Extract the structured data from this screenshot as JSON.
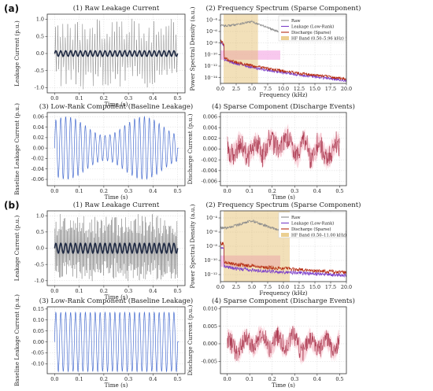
{
  "figure_labels": [
    "(a)",
    "(b)"
  ],
  "colors": {
    "raw_signal": "#7f7f7f",
    "baseline_trace": "#1f2a44",
    "lowrank": "#4a6fd0",
    "sparse_line": "#a8324a",
    "sparse_fill": "#f2a9b8",
    "spectrum_raw": "#8c8c8c",
    "spectrum_lowrank": "#7b3fc9",
    "spectrum_sparse": "#b52a10",
    "hf_band": "#e2bb63",
    "spectrum_highlight": "#f5b6e8"
  },
  "chart_data": [
    {
      "id": "a1",
      "type": "line",
      "title": "(1) Raw Leakage Current",
      "xlabel": "Time (s)",
      "ylabel": "Leakage Current (p.u.)",
      "xlim": [
        -0.03,
        0.53
      ],
      "ylim": [
        -1.15,
        1.15
      ],
      "xticks": [
        "0.0",
        "0.1",
        "0.2",
        "0.3",
        "0.4",
        "0.5"
      ],
      "yticks": [
        "-1.0",
        "-0.5",
        "0.0",
        "0.5",
        "1.0"
      ],
      "series": [
        {
          "role": "raw",
          "x_range": [
            0.0,
            0.5
          ],
          "spike_count": 50,
          "amplitude": 1.0
        },
        {
          "role": "baseline",
          "cycles": 25,
          "amplitude": 0.08
        }
      ]
    },
    {
      "id": "a2",
      "type": "line",
      "yscale": "log",
      "title": "(2) Frequency Spectrum (Sparse Component)",
      "xlabel": "Frequency (kHz)",
      "ylabel": "Power Spectral Density (a.u.)",
      "xlim": [
        0,
        20
      ],
      "ylim_exp": [
        -15,
        -3
      ],
      "xticks": [
        "0.0",
        "2.5",
        "5.0",
        "7.5",
        "10.0",
        "12.5",
        "15.0",
        "17.5",
        "20.0"
      ],
      "yticks": [
        "10⁻⁴",
        "10⁻⁶",
        "10⁻⁸",
        "10⁻¹⁰",
        "10⁻¹²",
        "10⁻¹⁴"
      ],
      "hf_band": [
        0.5,
        5.96
      ],
      "legend": [
        "Raw",
        "Leakage (Low-Rank)",
        "Discharge (Sparse)",
        "HF Band (0.50–5.96 kHz)"
      ],
      "legend_position": "top-right",
      "series": [
        {
          "name": "Raw",
          "start_exp": -4.9,
          "end_exp": -7.0
        },
        {
          "name": "Leakage (Low-Rank)",
          "start_exp": -10.2,
          "end_exp": -14.5
        },
        {
          "name": "Discharge (Sparse)",
          "start_exp": -10.0,
          "end_exp": -14.2
        }
      ]
    },
    {
      "id": "a3",
      "type": "line",
      "title": "(3) Low-Rank Component (Baseline Leakage)",
      "xlabel": "Time (s)",
      "ylabel": "Baseline Leakage Current (p.u.)",
      "xlim": [
        -0.03,
        0.53
      ],
      "ylim": [
        -0.072,
        0.068
      ],
      "xticks": [
        "0.0",
        "0.1",
        "0.2",
        "0.3",
        "0.4",
        "0.5"
      ],
      "yticks": [
        "-0.06",
        "-0.04",
        "-0.02",
        "0.00",
        "0.02",
        "0.04",
        "0.06"
      ],
      "series": [
        {
          "role": "lowrank",
          "cycles": 25,
          "amplitude_range": [
            0.02,
            0.06
          ]
        }
      ]
    },
    {
      "id": "a4",
      "type": "line",
      "title": "(4) Sparse Component (Discharge Events)",
      "xlabel": "Time (s)",
      "ylabel": "Discharge Current (p.u.)",
      "xlim": [
        -0.03,
        0.53
      ],
      "ylim": [
        -0.0068,
        0.0068
      ],
      "xticks": [
        "0.0",
        "0.1",
        "0.2",
        "0.3",
        "0.4",
        "0.5"
      ],
      "yticks": [
        "-0.006",
        "-0.004",
        "-0.002",
        "0.000",
        "0.002",
        "0.004",
        "0.006"
      ],
      "series": [
        {
          "role": "sparse",
          "amplitude": 0.0025
        }
      ]
    },
    {
      "id": "b1",
      "type": "line",
      "title": "(1) Raw Leakage Current",
      "xlabel": "Time (s)",
      "ylabel": "Leakage Current (p.u.)",
      "xlim": [
        -0.03,
        0.53
      ],
      "ylim": [
        -1.15,
        1.15
      ],
      "xticks": [
        "0.0",
        "0.1",
        "0.2",
        "0.3",
        "0.4",
        "0.5"
      ],
      "yticks": [
        "-1.0",
        "-0.5",
        "0.0",
        "0.5",
        "1.0"
      ],
      "series": [
        {
          "role": "raw",
          "x_range": [
            0.0,
            0.5
          ],
          "spike_count": 120,
          "amplitude": 1.0
        },
        {
          "role": "baseline",
          "cycles": 25,
          "amplitude": 0.15
        }
      ]
    },
    {
      "id": "b2",
      "type": "line",
      "yscale": "log",
      "title": "(2) Frequency Spectrum (Sparse Component)",
      "xlabel": "Frequency (kHz)",
      "ylabel": "Power Spectral Density (a.u.)",
      "xlim": [
        0,
        20
      ],
      "ylim_exp": [
        -13,
        -3
      ],
      "xticks": [
        "0.0",
        "2.5",
        "5.0",
        "7.5",
        "10.0",
        "12.5",
        "15.0",
        "17.5",
        "20.0"
      ],
      "yticks": [
        "10⁻⁴",
        "10⁻⁶",
        "10⁻⁸",
        "10⁻¹⁰",
        "10⁻¹²"
      ],
      "hf_band": [
        0.5,
        11.0
      ],
      "legend": [
        "Raw",
        "Leakage (Low-Rank)",
        "Discharge (Sparse)",
        "HF Band (0.50–11.00 kHz)"
      ],
      "legend_position": "top-right",
      "series": [
        {
          "name": "Raw",
          "start_exp": -5.4,
          "end_exp": -6.0
        },
        {
          "name": "Leakage (Low-Rank)",
          "start_exp": -10.7,
          "end_exp": -12.1
        },
        {
          "name": "Discharge (Sparse)",
          "start_exp": -10.0,
          "end_exp": -11.7
        }
      ]
    },
    {
      "id": "b3",
      "type": "line",
      "title": "(3) Low-Rank Component (Baseline Leakage)",
      "xlabel": "Time (s)",
      "ylabel": "Baseline Leakage Current (p.u.)",
      "xlim": [
        -0.03,
        0.53
      ],
      "ylim": [
        -0.145,
        0.16
      ],
      "xticks": [
        "0.0",
        "0.1",
        "0.2",
        "0.3",
        "0.4",
        "0.5"
      ],
      "yticks": [
        "-0.10",
        "-0.05",
        "0.00",
        "0.05",
        "0.10",
        "0.15"
      ],
      "series": [
        {
          "role": "lowrank",
          "cycles": 25,
          "amplitude": 0.135
        }
      ]
    },
    {
      "id": "b4",
      "type": "line",
      "title": "(4) Sparse Component (Discharge Events)",
      "xlabel": "Time (s)",
      "ylabel": "Discharge Current (p.u.)",
      "xlim": [
        -0.03,
        0.53
      ],
      "ylim": [
        -0.0085,
        0.0105
      ],
      "xticks": [
        "0.0",
        "0.1",
        "0.2",
        "0.3",
        "0.4",
        "0.5"
      ],
      "yticks": [
        "-0.005",
        "0.000",
        "0.005",
        "0.010"
      ],
      "series": [
        {
          "role": "sparse",
          "amplitude": 0.0035
        }
      ]
    }
  ]
}
